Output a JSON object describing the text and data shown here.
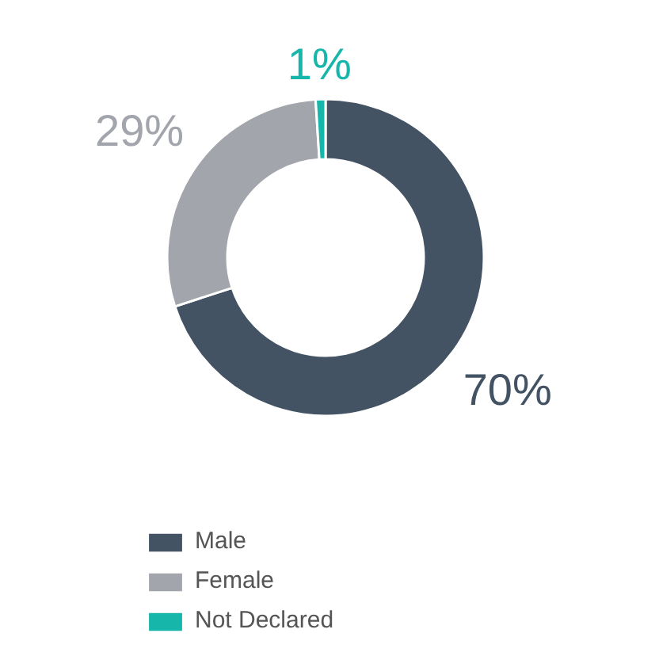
{
  "chart_data": {
    "type": "donut",
    "categories": [
      "Male",
      "Female",
      "Not Declared"
    ],
    "values": [
      70,
      29,
      1
    ],
    "colors": [
      "#435363",
      "#a3a5ac",
      "#16b6aa"
    ],
    "value_labels": [
      "70%",
      "29%",
      "1%"
    ],
    "legend": "bottom"
  }
}
